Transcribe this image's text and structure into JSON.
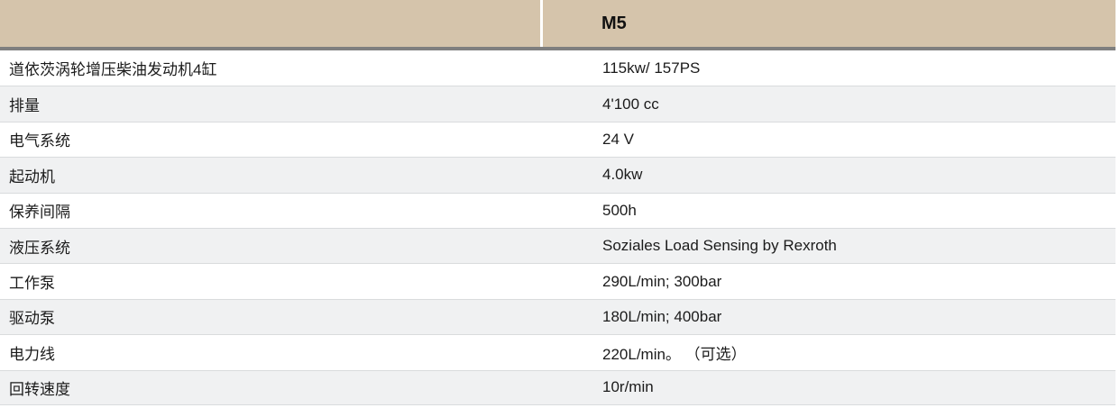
{
  "table": {
    "header": {
      "model": "M5"
    },
    "rows": [
      {
        "label": "道依茨涡轮增压柴油发动机4缸",
        "value": "115kw/ 157PS"
      },
      {
        "label": "排量",
        "value": "4'100 cc"
      },
      {
        "label": "电气系统",
        "value": "24 V"
      },
      {
        "label": "起动机",
        "value": "4.0kw"
      },
      {
        "label": "保养间隔",
        "value": "500h"
      },
      {
        "label": "液压系统",
        "value": "Soziales Load Sensing by Rexroth"
      },
      {
        "label": "工作泵",
        "value": "290L/min; 300bar"
      },
      {
        "label": "驱动泵",
        "value": "180L/min; 400bar"
      },
      {
        "label": "电力线",
        "value": "220L/min。 （可选）"
      },
      {
        "label": "回转速度",
        "value": "10r/min"
      }
    ],
    "colors": {
      "header_bg": "#d5c4ab",
      "header_border": "#7f7f7f",
      "row_alt_bg": "#f0f1f2",
      "row_separator": "#d9dbdd",
      "text_color": "#1b1b1b"
    }
  }
}
